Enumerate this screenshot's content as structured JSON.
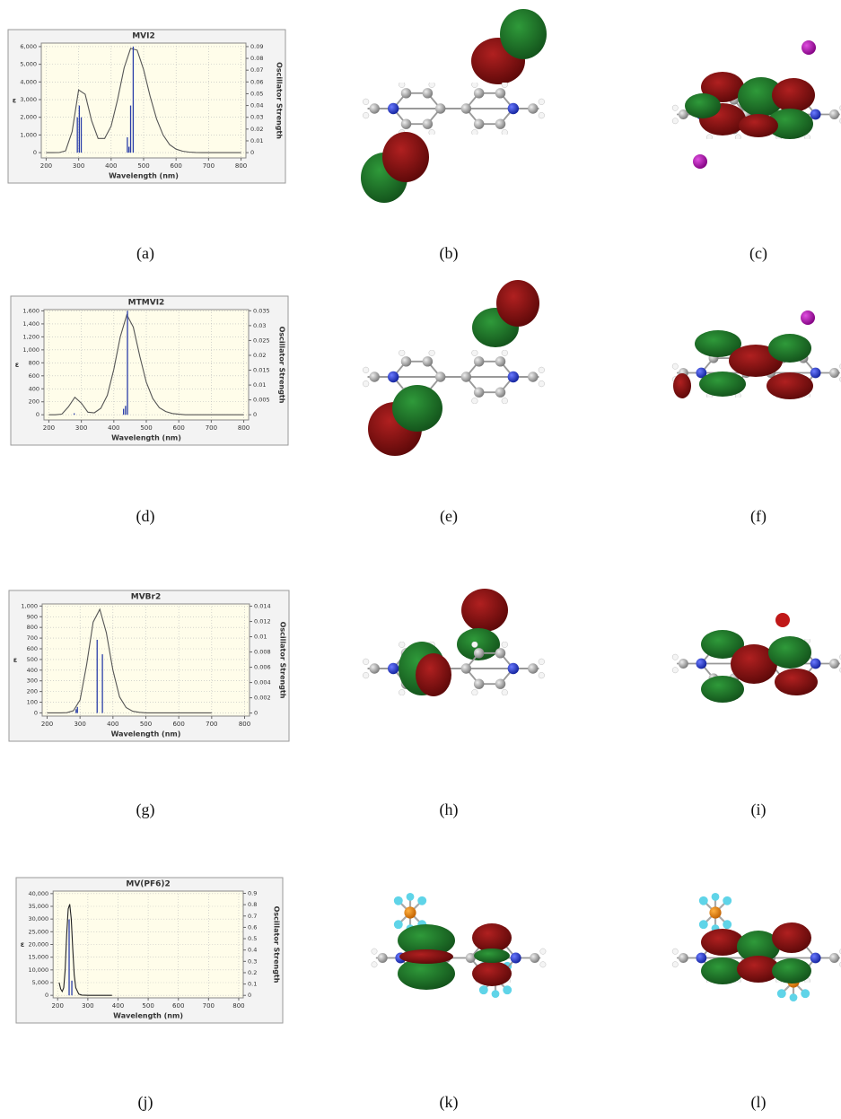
{
  "chart_data": [
    {
      "type": "line",
      "title": "MVI2",
      "x_label": "Wavelength (nm)",
      "y_label": "ε",
      "y2_label": "Oscillator Strength",
      "xlim": [
        185,
        815
      ],
      "xticks": [
        200,
        300,
        400,
        500,
        600,
        700,
        800
      ],
      "ylim": [
        -300,
        6200
      ],
      "yticks": [
        0,
        {
          "value": 1000,
          "label": "1,000"
        },
        {
          "value": 2000,
          "label": "2,000"
        },
        {
          "value": 3000,
          "label": "3,000"
        },
        {
          "value": 4000,
          "label": "4,000"
        },
        {
          "value": 5000,
          "label": "5,000"
        },
        {
          "value": 6000,
          "label": "6,000"
        }
      ],
      "y2lim": [
        -0.0045,
        0.093
      ],
      "y2ticks": [
        0,
        0.01,
        0.02,
        0.03,
        0.04,
        0.05,
        0.06,
        0.07,
        0.08,
        0.09
      ],
      "grid": true,
      "series": [
        {
          "color": "#555555",
          "x": [
            200,
            220,
            240,
            260,
            280,
            300,
            320,
            340,
            360,
            380,
            400,
            420,
            440,
            460,
            480,
            500,
            520,
            540,
            560,
            580,
            600,
            620,
            640,
            660,
            680,
            700,
            720,
            740,
            760,
            780,
            800
          ],
          "values": [
            0,
            0,
            5,
            100,
            1200,
            3550,
            3300,
            1800,
            800,
            800,
            1500,
            3000,
            4800,
            5900,
            5800,
            4700,
            3200,
            1900,
            1000,
            450,
            200,
            80,
            30,
            10,
            0,
            0,
            0,
            0,
            0,
            0,
            0
          ]
        },
        {
          "type": "stick",
          "axis": "y2",
          "color": "#2a3ea8",
          "x": [
            296,
            302,
            308,
            450,
            455,
            460,
            468
          ],
          "values": [
            0.03,
            0.04,
            0.03,
            0.013,
            0.005,
            0.04,
            0.09
          ]
        }
      ]
    },
    {
      "type": "line",
      "title": "MTMVI2",
      "x_label": "Wavelength (nm)",
      "y_label": "ε",
      "y2_label": "Oscillator Strength",
      "xlim": [
        185,
        815
      ],
      "xticks": [
        200,
        300,
        400,
        500,
        600,
        700,
        800
      ],
      "ylim": [
        -80,
        1620
      ],
      "yticks": [
        0,
        200,
        400,
        600,
        800,
        {
          "value": 1000,
          "label": "1,000"
        },
        {
          "value": 1200,
          "label": "1,200"
        },
        {
          "value": 1400,
          "label": "1,400"
        },
        {
          "value": 1600,
          "label": "1,600"
        }
      ],
      "y2lim": [
        -0.00175,
        0.0354
      ],
      "y2ticks": [
        0,
        0.005,
        0.01,
        0.015,
        0.02,
        0.025,
        0.03,
        0.035
      ],
      "grid": true,
      "series": [
        {
          "color": "#555555",
          "x": [
            200,
            220,
            240,
            260,
            280,
            300,
            320,
            340,
            360,
            380,
            400,
            420,
            440,
            460,
            480,
            500,
            520,
            540,
            560,
            580,
            600,
            620,
            640,
            660,
            680,
            700,
            720,
            740,
            760,
            780,
            800
          ],
          "values": [
            0,
            0,
            10,
            120,
            270,
            180,
            40,
            30,
            100,
            300,
            700,
            1200,
            1540,
            1350,
            900,
            500,
            250,
            110,
            50,
            20,
            8,
            0,
            0,
            0,
            0,
            0,
            0,
            0,
            0,
            0,
            0
          ]
        },
        {
          "type": "stick",
          "axis": "y2",
          "color": "#2a3ea8",
          "x": [
            278,
            430,
            436,
            442
          ],
          "values": [
            0.0005,
            0.002,
            0.003,
            0.035
          ]
        }
      ]
    },
    {
      "type": "line",
      "title": "MVBr2",
      "x_label": "Wavelength (nm)",
      "y_label": "ε",
      "y2_label": "Oscillator Strength",
      "xlim": [
        185,
        815
      ],
      "xticks": [
        200,
        300,
        400,
        500,
        600,
        700,
        800
      ],
      "ylim": [
        -30,
        1020
      ],
      "yticks": [
        0,
        100,
        200,
        300,
        400,
        500,
        600,
        700,
        800,
        900,
        {
          "value": 1000,
          "label": "1,000"
        }
      ],
      "y2lim": [
        -0.0004,
        0.0143
      ],
      "y2ticks": [
        0,
        0.002,
        0.004,
        0.006,
        0.008,
        0.01,
        0.012,
        0.014
      ],
      "grid": true,
      "series": [
        {
          "color": "#555555",
          "x": [
            200,
            220,
            240,
            260,
            280,
            300,
            320,
            340,
            360,
            380,
            400,
            420,
            440,
            460,
            480,
            500,
            520,
            540,
            560,
            580,
            600,
            620,
            640,
            660,
            680,
            700
          ],
          "values": [
            0,
            0,
            0,
            2,
            20,
            120,
            450,
            850,
            970,
            750,
            400,
            150,
            50,
            15,
            5,
            0,
            0,
            0,
            0,
            0,
            0,
            0,
            0,
            0,
            0,
            0
          ]
        },
        {
          "type": "stick",
          "axis": "y2",
          "color": "#2a3ea8",
          "x": [
            288,
            292,
            352,
            368
          ],
          "values": [
            0.0005,
            0.0008,
            0.0096,
            0.0077
          ]
        }
      ]
    },
    {
      "type": "line",
      "title": "MV(PF6)2",
      "x_label": "Wavelength (nm)",
      "y_label": "ε",
      "y2_label": "Oscillator Strength",
      "xlim": [
        185,
        815
      ],
      "xticks": [
        200,
        300,
        400,
        500,
        600,
        700,
        800
      ],
      "ylim": [
        -1000,
        41000
      ],
      "yticks": [
        0,
        {
          "value": 5000,
          "label": "5,000"
        },
        {
          "value": 10000,
          "label": "10,000"
        },
        {
          "value": 15000,
          "label": "15,000"
        },
        {
          "value": 20000,
          "label": "20,000"
        },
        {
          "value": 25000,
          "label": "25,000"
        },
        {
          "value": 30000,
          "label": "30,000"
        },
        {
          "value": 35000,
          "label": "35,000"
        },
        {
          "value": 40000,
          "label": "40,000"
        }
      ],
      "y2lim": [
        -0.022,
        0.92
      ],
      "y2ticks": [
        0,
        0.1,
        0.2,
        0.3,
        0.4,
        0.5,
        0.6,
        0.7,
        0.8,
        0.9
      ],
      "grid": true,
      "series": [
        {
          "color": "#222222",
          "x": [
            205,
            210,
            215,
            220,
            225,
            230,
            235,
            240,
            245,
            250,
            255,
            260,
            270,
            280,
            300,
            340,
            380
          ],
          "values": [
            5000,
            2500,
            1500,
            3000,
            10000,
            24000,
            34000,
            35800,
            30000,
            18000,
            8000,
            3000,
            500,
            100,
            0,
            0,
            0
          ]
        },
        {
          "type": "stick",
          "axis": "y2",
          "color": "#2a3ea8",
          "x": [
            238,
            247
          ],
          "values": [
            0.67,
            0.13
          ]
        }
      ]
    }
  ],
  "captions": [
    "(a)",
    "(b)",
    "(c)",
    "(d)",
    "(e)",
    "(f)",
    "(g)",
    "(h)",
    "(i)",
    "(j)",
    "(k)",
    "(l)"
  ]
}
